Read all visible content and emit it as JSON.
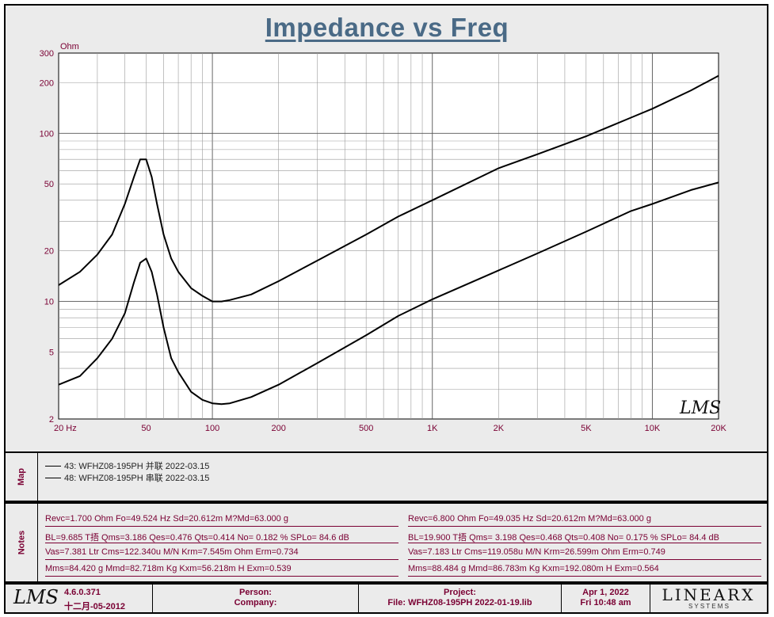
{
  "chart_data": {
    "type": "line",
    "title": "Impedance vs Freq",
    "ylabel": "Ohm",
    "xscale": "log",
    "yscale": "log",
    "xlim": [
      20,
      20000
    ],
    "ylim": [
      2,
      300
    ],
    "grid": true,
    "x_ticks": [
      {
        "v": 20,
        "label": "20  Hz"
      },
      {
        "v": 50,
        "label": "50"
      },
      {
        "v": 100,
        "label": "100"
      },
      {
        "v": 200,
        "label": "200"
      },
      {
        "v": 500,
        "label": "500"
      },
      {
        "v": 1000,
        "label": "1K"
      },
      {
        "v": 2000,
        "label": "2K"
      },
      {
        "v": 5000,
        "label": "5K"
      },
      {
        "v": 10000,
        "label": "10K"
      },
      {
        "v": 20000,
        "label": "20K"
      }
    ],
    "y_ticks": [
      {
        "v": 300,
        "label": "300"
      },
      {
        "v": 200,
        "label": "200"
      },
      {
        "v": 100,
        "label": "100"
      },
      {
        "v": 50,
        "label": "50"
      },
      {
        "v": 20,
        "label": "20"
      },
      {
        "v": 10,
        "label": "10"
      },
      {
        "v": 5,
        "label": "5"
      },
      {
        "v": 2,
        "label": "2"
      }
    ],
    "series": [
      {
        "name": "43: WFHZ08-195PH  并联 2022-03.15",
        "x": [
          20,
          25,
          30,
          35,
          40,
          44,
          47,
          50,
          53,
          56,
          60,
          65,
          70,
          80,
          90,
          100,
          110,
          120,
          150,
          200,
          300,
          500,
          700,
          1000,
          2000,
          3000,
          5000,
          8000,
          10000,
          15000,
          20000
        ],
        "y": [
          3.2,
          3.6,
          4.6,
          6.0,
          8.5,
          13,
          17,
          18,
          15,
          11,
          7.0,
          4.6,
          3.8,
          2.9,
          2.6,
          2.48,
          2.45,
          2.48,
          2.7,
          3.2,
          4.3,
          6.3,
          8.2,
          10.3,
          15.3,
          19.3,
          26,
          34.5,
          38,
          46,
          51
        ]
      },
      {
        "name": "48: WFHZ08-195PH  串联 2022-03.15",
        "x": [
          20,
          25,
          30,
          35,
          40,
          44,
          47,
          50,
          53,
          56,
          60,
          65,
          70,
          80,
          90,
          100,
          110,
          120,
          150,
          200,
          300,
          500,
          700,
          1000,
          2000,
          3000,
          5000,
          8000,
          10000,
          15000,
          20000
        ],
        "y": [
          12.5,
          15,
          19,
          25,
          38,
          55,
          70,
          70,
          55,
          38,
          25,
          18,
          15,
          12,
          10.8,
          10,
          10,
          10.2,
          11,
          13.2,
          17.5,
          25,
          32,
          40,
          62,
          75,
          96,
          124,
          140,
          180,
          220
        ]
      }
    ],
    "watermark": "LMS"
  },
  "map": {
    "label": "Map",
    "entries": [
      "43: WFHZ08-195PH  并联 2022-03.15",
      "48: WFHZ08-195PH  串联 2022-03.15"
    ]
  },
  "notes": {
    "label": "Notes",
    "left": [
      "Revc=1.700 Ohm  Fo=49.524 Hz  Sd=20.612m M?Md=63.000 g",
      "BL=9.685 T捂  Qms=3.186  Qes=0.476  Qts=0.414  No= 0.182 %  SPLo= 84.6 dB",
      "Vas=7.381 Ltr  Cms=122.340u M/N  Krm=7.545m Ohm  Erm=0.734",
      "Mms=84.420 g  Mmd=82.718m Kg  Kxm=56.218m H  Exm=0.539"
    ],
    "right": [
      "Revc=6.800 Ohm  Fo=49.035 Hz  Sd=20.612m M?Md=63.000 g",
      "BL=19.900 T捂  Qms= 3.198  Qes=0.468  Qts=0.408  No= 0.175 %  SPLo= 84.4 dB",
      "Vas=7.183 Ltr  Cms=119.058u M/N  Krm=26.599m Ohm  Erm=0.749",
      "Mms=88.484 g  Mmd=86.783m Kg  Kxm=192.080m H  Exm=0.564"
    ]
  },
  "footer": {
    "logo": "LMS",
    "version": "4.6.0.371",
    "build_date": "十二月-05-2012",
    "person_label": "Person:",
    "company_label": "Company:",
    "project_label": "Project:",
    "file_label": "File: WFHZ08-195PH 2022-01-19.lib",
    "date": "Apr  1, 2022",
    "time": "Fri 10:48 am",
    "brand": "LINEARX",
    "brand_sub": "S Y S T E M S"
  }
}
